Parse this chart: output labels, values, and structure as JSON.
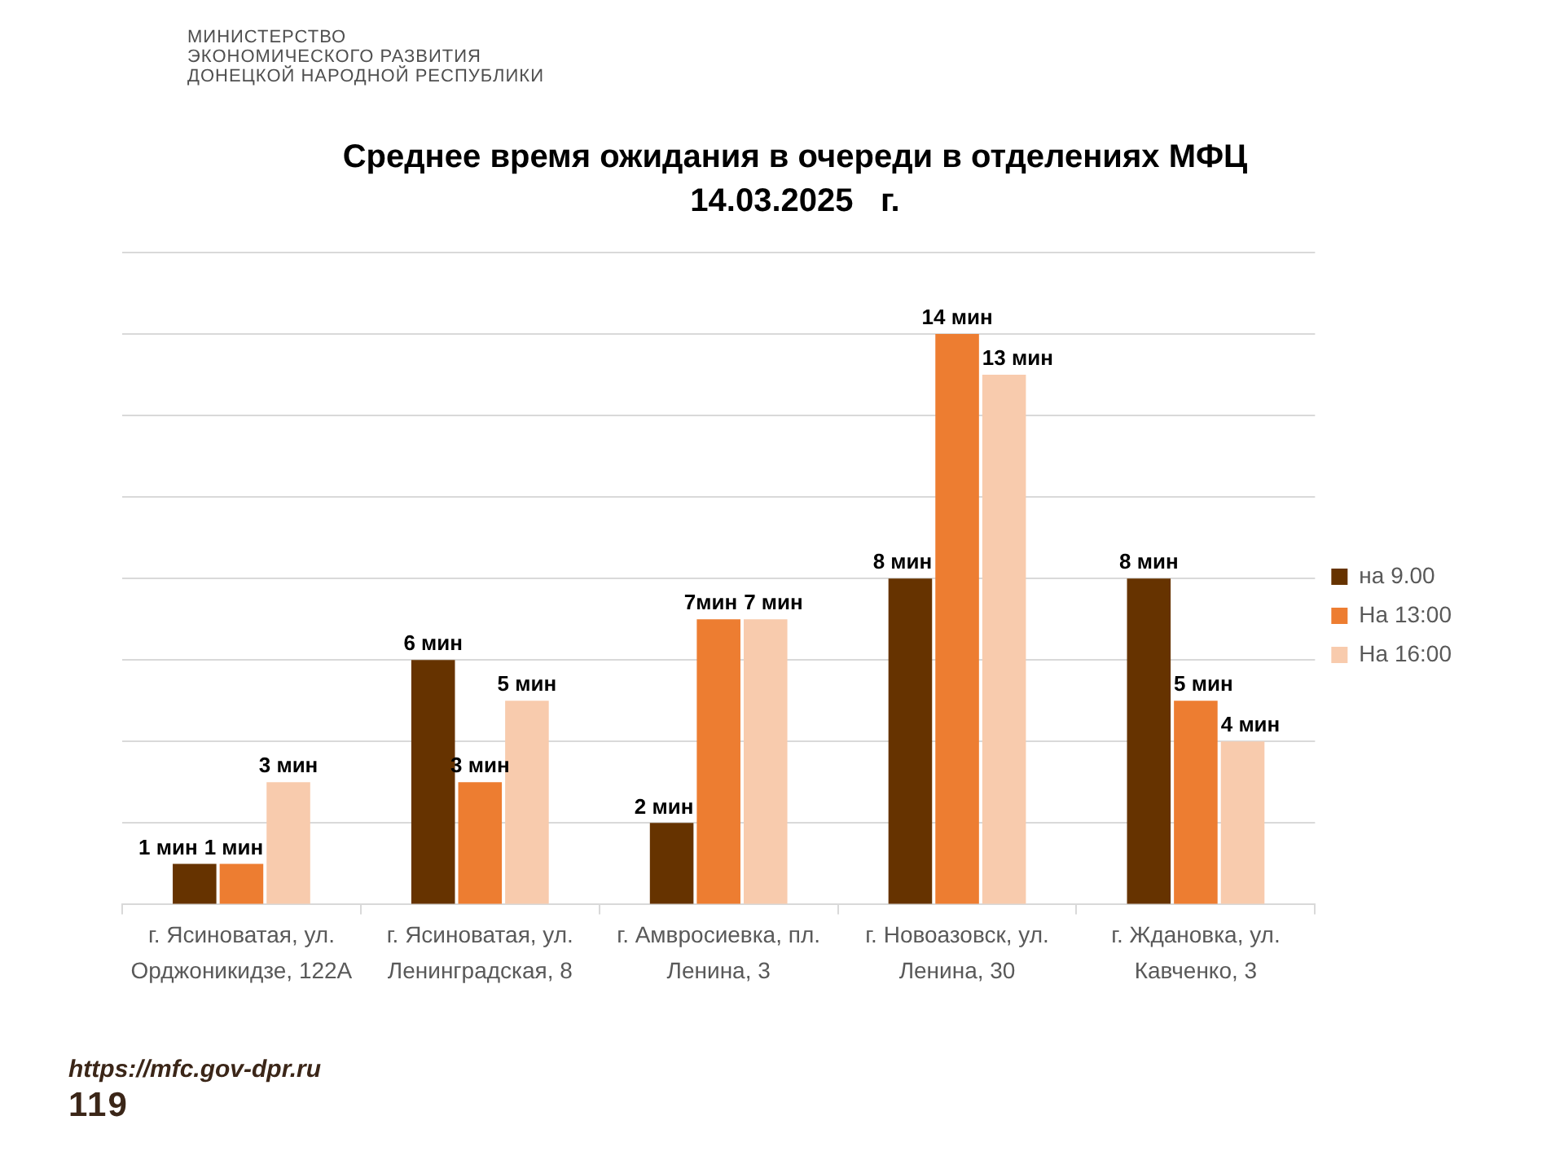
{
  "chart_data": {
    "type": "bar",
    "title": "Среднее время ожидания в очереди в отделениях МФЦ",
    "subtitle": "14.03.2025   г.",
    "categories": [
      "г. Ясиноватая, ул. Орджоникидзе, 122А",
      "г. Ясиноватая, ул. Ленинградская, 8",
      "г. Амвросиевка, пл. Ленина, 3",
      "г. Новоазовск, ул. Ленина, 30",
      "г. Ждановка, ул. Кавченко, 3"
    ],
    "series": [
      {
        "name": "на 9.00",
        "color": "#663300",
        "values": [
          1,
          6,
          2,
          8,
          8
        ],
        "value_labels": [
          "1 мин",
          "6 мин",
          "2 мин",
          "8 мин",
          "8 мин"
        ]
      },
      {
        "name": "На 13:00",
        "color": "#ed7d31",
        "values": [
          1,
          3,
          7,
          14,
          5
        ],
        "value_labels": [
          "1 мин",
          "3 мин",
          "7мин",
          "14 мин",
          "5 мин"
        ]
      },
      {
        "name": "На 16:00",
        "color": "#f8cbad",
        "values": [
          3,
          5,
          7,
          13,
          4
        ],
        "value_labels": [
          "3 мин",
          "5 мин",
          "7 мин",
          "13 мин",
          "4 мин"
        ]
      }
    ],
    "ylim": [
      0,
      16
    ],
    "yticks": [
      {
        "value": 0,
        "label": null
      },
      {
        "value": 2,
        "label": null
      },
      {
        "value": 4,
        "label": null
      },
      {
        "value": 6,
        "label": null
      },
      {
        "value": 8,
        "label": null
      },
      {
        "value": 10,
        "label": null
      },
      {
        "value": 12,
        "label": null
      },
      {
        "value": 14,
        "label": null
      },
      {
        "value": 16,
        "label": null
      }
    ],
    "grid": "y",
    "legend": "right",
    "tick_labels": "x",
    "annotations": [
      "МИНИСТЕРСТВО",
      "ЭКОНОМИЧЕСКОГО РАЗВИТИЯ",
      "ДОНЕЦКОЙ НАРОДНОЙ РЕСПУБЛИКИ",
      "https://mfc.gov-dpr.ru",
      "119"
    ]
  }
}
